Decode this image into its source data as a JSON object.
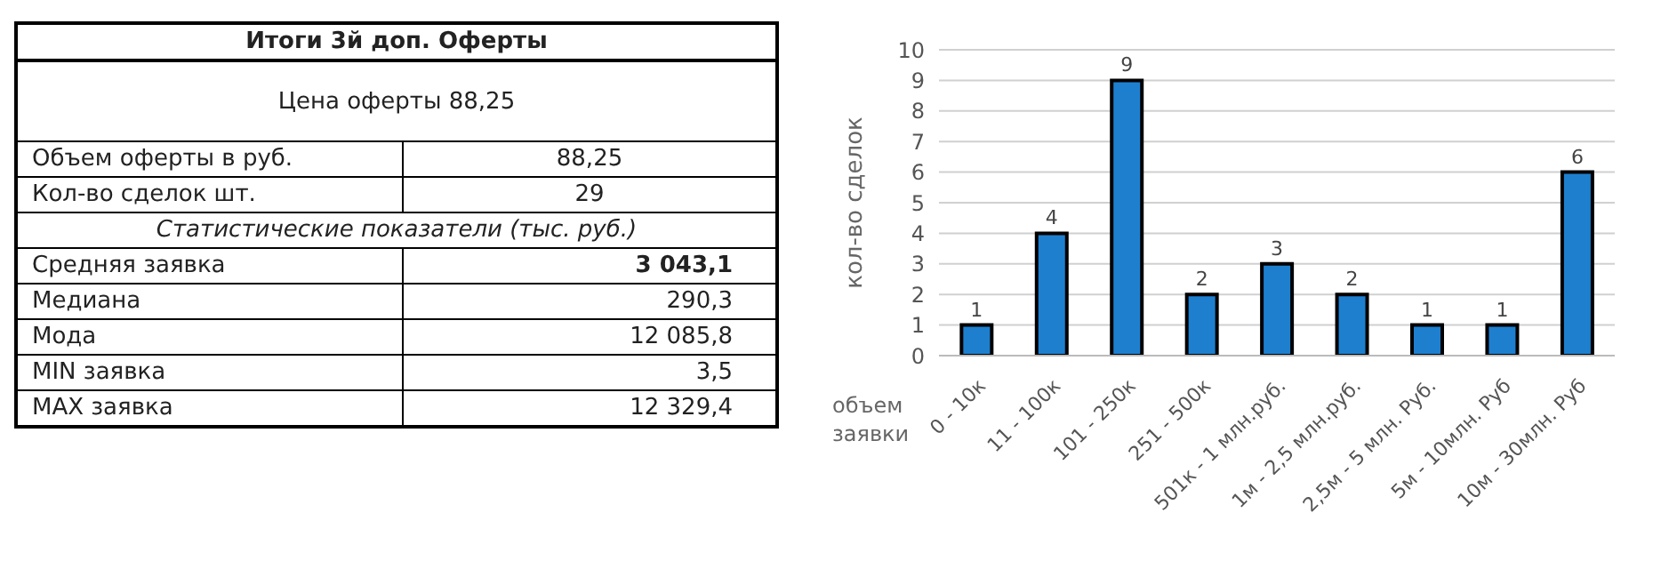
{
  "chart_data": [
    {
      "type": "other",
      "title": "Итоги 3й доп. Оферты",
      "annotations": [
        "Цена оферты 88,25",
        "Объем оферты в руб.",
        "88,25",
        "Кол-во сделок шт.",
        "29",
        "Статистические показатели (тыс. руб.)",
        "Средняя заявка",
        "3 043,1",
        "Медиана",
        "290,3",
        "Мода",
        "12 085,8",
        "MIN заявка",
        "3,5",
        "MAX заявка",
        "12 329,4"
      ]
    },
    {
      "type": "bar",
      "categories": [
        "0 - 10к",
        "11 - 100к",
        "101 - 250к",
        "251 - 500к",
        "501к - 1 млн.руб.",
        "1м - 2,5 млн.руб.",
        "2,5м - 5 млн. Руб.",
        "5м - 10млн. Руб",
        "10м - 30млн. Руб"
      ],
      "values": [
        1,
        4,
        9,
        2,
        3,
        2,
        1,
        1,
        6
      ],
      "color": "#1e7fcf",
      "ylim": [
        0,
        10
      ],
      "yticks": [
        0,
        1,
        2,
        3,
        4,
        5,
        6,
        7,
        8,
        9,
        10
      ],
      "grid": "y",
      "data_labels": true,
      "xlabel": "объем заявки",
      "ylabel": "кол-во сделок"
    }
  ]
}
